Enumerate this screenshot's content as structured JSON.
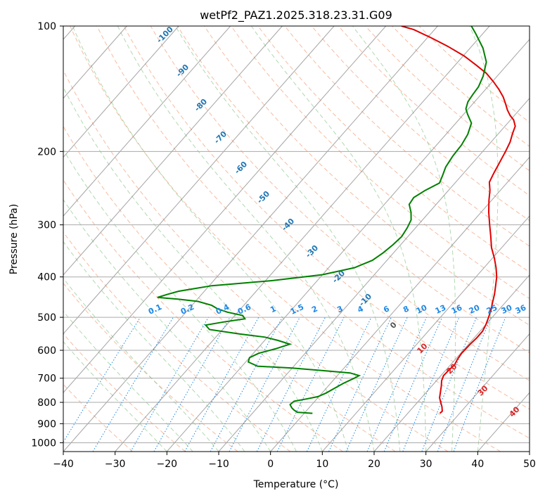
{
  "chart_data": {
    "type": "line",
    "title": "wetPf2_PAZ1.2025.318.23.31.G09",
    "xlabel": "Temperature (°C)",
    "ylabel": "Pressure (hPa)",
    "xlim": [
      -40,
      50
    ],
    "ylim": [
      1050,
      100
    ],
    "y_scale": "log",
    "grid": true,
    "x_ticks": [
      -40,
      -30,
      -20,
      -10,
      0,
      10,
      20,
      30,
      40,
      50
    ],
    "y_ticks": [
      100,
      200,
      300,
      400,
      500,
      600,
      700,
      800,
      900,
      1000
    ],
    "colors": {
      "temperature": "#e00000",
      "dewpoint": "#008000",
      "dry_adiabat": "#f4a582",
      "moist_adiabat": "#8fc98f",
      "mixing_ratio": "#1e88e5",
      "isotherm": "#7f7f7f"
    },
    "series": [
      {
        "points": [
          [
            26.2,
            850
          ],
          [
            26.3,
            840
          ],
          [
            25.5,
            820
          ],
          [
            24.5,
            800
          ],
          [
            23.5,
            780
          ],
          [
            22.5,
            750
          ],
          [
            21.8,
            730
          ],
          [
            21.0,
            710
          ],
          [
            20.5,
            690
          ],
          [
            20.6,
            670
          ],
          [
            20.8,
            650
          ],
          [
            20.4,
            630
          ],
          [
            20.2,
            610
          ],
          [
            20.3,
            580
          ],
          [
            20.5,
            560
          ],
          [
            20.5,
            540
          ],
          [
            20.0,
            520
          ],
          [
            19.3,
            500
          ],
          [
            18.5,
            480
          ],
          [
            17.5,
            460
          ],
          [
            16.5,
            440
          ],
          [
            15.3,
            420
          ],
          [
            14.0,
            400
          ],
          [
            12.3,
            380
          ],
          [
            10.3,
            360
          ],
          [
            8.0,
            340
          ],
          [
            6.0,
            320
          ],
          [
            3.8,
            300
          ],
          [
            1.5,
            280
          ],
          [
            -0.5,
            262
          ],
          [
            -2.0,
            248
          ],
          [
            -3.5,
            237
          ],
          [
            -4.2,
            225
          ],
          [
            -4.9,
            212
          ],
          [
            -5.6,
            200
          ],
          [
            -6.3,
            190
          ],
          [
            -7.3,
            181
          ],
          [
            -8.0,
            174
          ],
          [
            -9.4,
            168
          ],
          [
            -10.8,
            164
          ],
          [
            -12.3,
            159
          ],
          [
            -13.6,
            154
          ],
          [
            -15.3,
            148
          ],
          [
            -17.4,
            142
          ],
          [
            -19.8,
            136
          ],
          [
            -22.5,
            130
          ],
          [
            -26.0,
            124
          ],
          [
            -29.8,
            118
          ],
          [
            -34.5,
            112
          ],
          [
            -39.0,
            107
          ],
          [
            -44.0,
            102
          ],
          [
            -47.0,
            100
          ]
        ]
      },
      {
        "points": [
          [
            1.6,
            850
          ],
          [
            -1.5,
            845
          ],
          [
            -2.5,
            835
          ],
          [
            -3.3,
            825
          ],
          [
            -4.2,
            810
          ],
          [
            -4.0,
            795
          ],
          [
            -2.0,
            785
          ],
          [
            -0.2,
            775
          ],
          [
            0.8,
            760
          ],
          [
            1.6,
            740
          ],
          [
            2.5,
            720
          ],
          [
            3.7,
            700
          ],
          [
            4.2,
            690
          ],
          [
            2.0,
            680
          ],
          [
            -3.0,
            672
          ],
          [
            -10.0,
            662
          ],
          [
            -17.0,
            655
          ],
          [
            -19.5,
            640
          ],
          [
            -20.0,
            625
          ],
          [
            -19.0,
            610
          ],
          [
            -16.5,
            595
          ],
          [
            -14.5,
            580
          ],
          [
            -17.5,
            568
          ],
          [
            -20.5,
            558
          ],
          [
            -26.0,
            548
          ],
          [
            -32.5,
            535
          ],
          [
            -34.0,
            522
          ],
          [
            -31.0,
            513
          ],
          [
            -27.5,
            504
          ],
          [
            -28.5,
            495
          ],
          [
            -32.0,
            486
          ],
          [
            -34.5,
            477
          ],
          [
            -36.2,
            468
          ],
          [
            -39.5,
            458
          ],
          [
            -44.0,
            452
          ],
          [
            -46.0,
            450
          ],
          [
            -48.0,
            448
          ],
          [
            -46.5,
            440
          ],
          [
            -45.0,
            433
          ],
          [
            -39.5,
            420
          ],
          [
            -28.5,
            408
          ],
          [
            -20.0,
            395
          ],
          [
            -15.0,
            380
          ],
          [
            -12.8,
            365
          ],
          [
            -12.0,
            350
          ],
          [
            -11.5,
            335
          ],
          [
            -11.2,
            320
          ],
          [
            -11.6,
            305
          ],
          [
            -12.2,
            292
          ],
          [
            -13.5,
            280
          ],
          [
            -15.2,
            268
          ],
          [
            -15.5,
            258
          ],
          [
            -14.5,
            248
          ],
          [
            -13.0,
            238
          ],
          [
            -13.7,
            228
          ],
          [
            -14.5,
            218
          ],
          [
            -15.0,
            205
          ],
          [
            -15.2,
            193
          ],
          [
            -15.8,
            182
          ],
          [
            -17.0,
            171
          ],
          [
            -19.2,
            163
          ],
          [
            -20.5,
            158
          ],
          [
            -21.3,
            152
          ],
          [
            -21.6,
            146
          ],
          [
            -21.8,
            140
          ],
          [
            -22.7,
            132
          ],
          [
            -24.5,
            122
          ],
          [
            -27.5,
            113
          ],
          [
            -31.5,
            104
          ],
          [
            -33.5,
            100
          ]
        ]
      }
    ],
    "dry_adiabat_labels": [
      "-100",
      "-90",
      "-80",
      "-70",
      "-60",
      "-50",
      "-40",
      "-30",
      "-20",
      "-10",
      "0",
      "10",
      "20",
      "30",
      "40"
    ],
    "mixing_ratio_labels": [
      "0.1",
      "0.2",
      "0.4",
      "0.6",
      "1",
      "1.5",
      "2",
      "3",
      "4",
      "6",
      "8",
      "10",
      "13",
      "16",
      "20",
      "25",
      "30",
      "36"
    ]
  }
}
